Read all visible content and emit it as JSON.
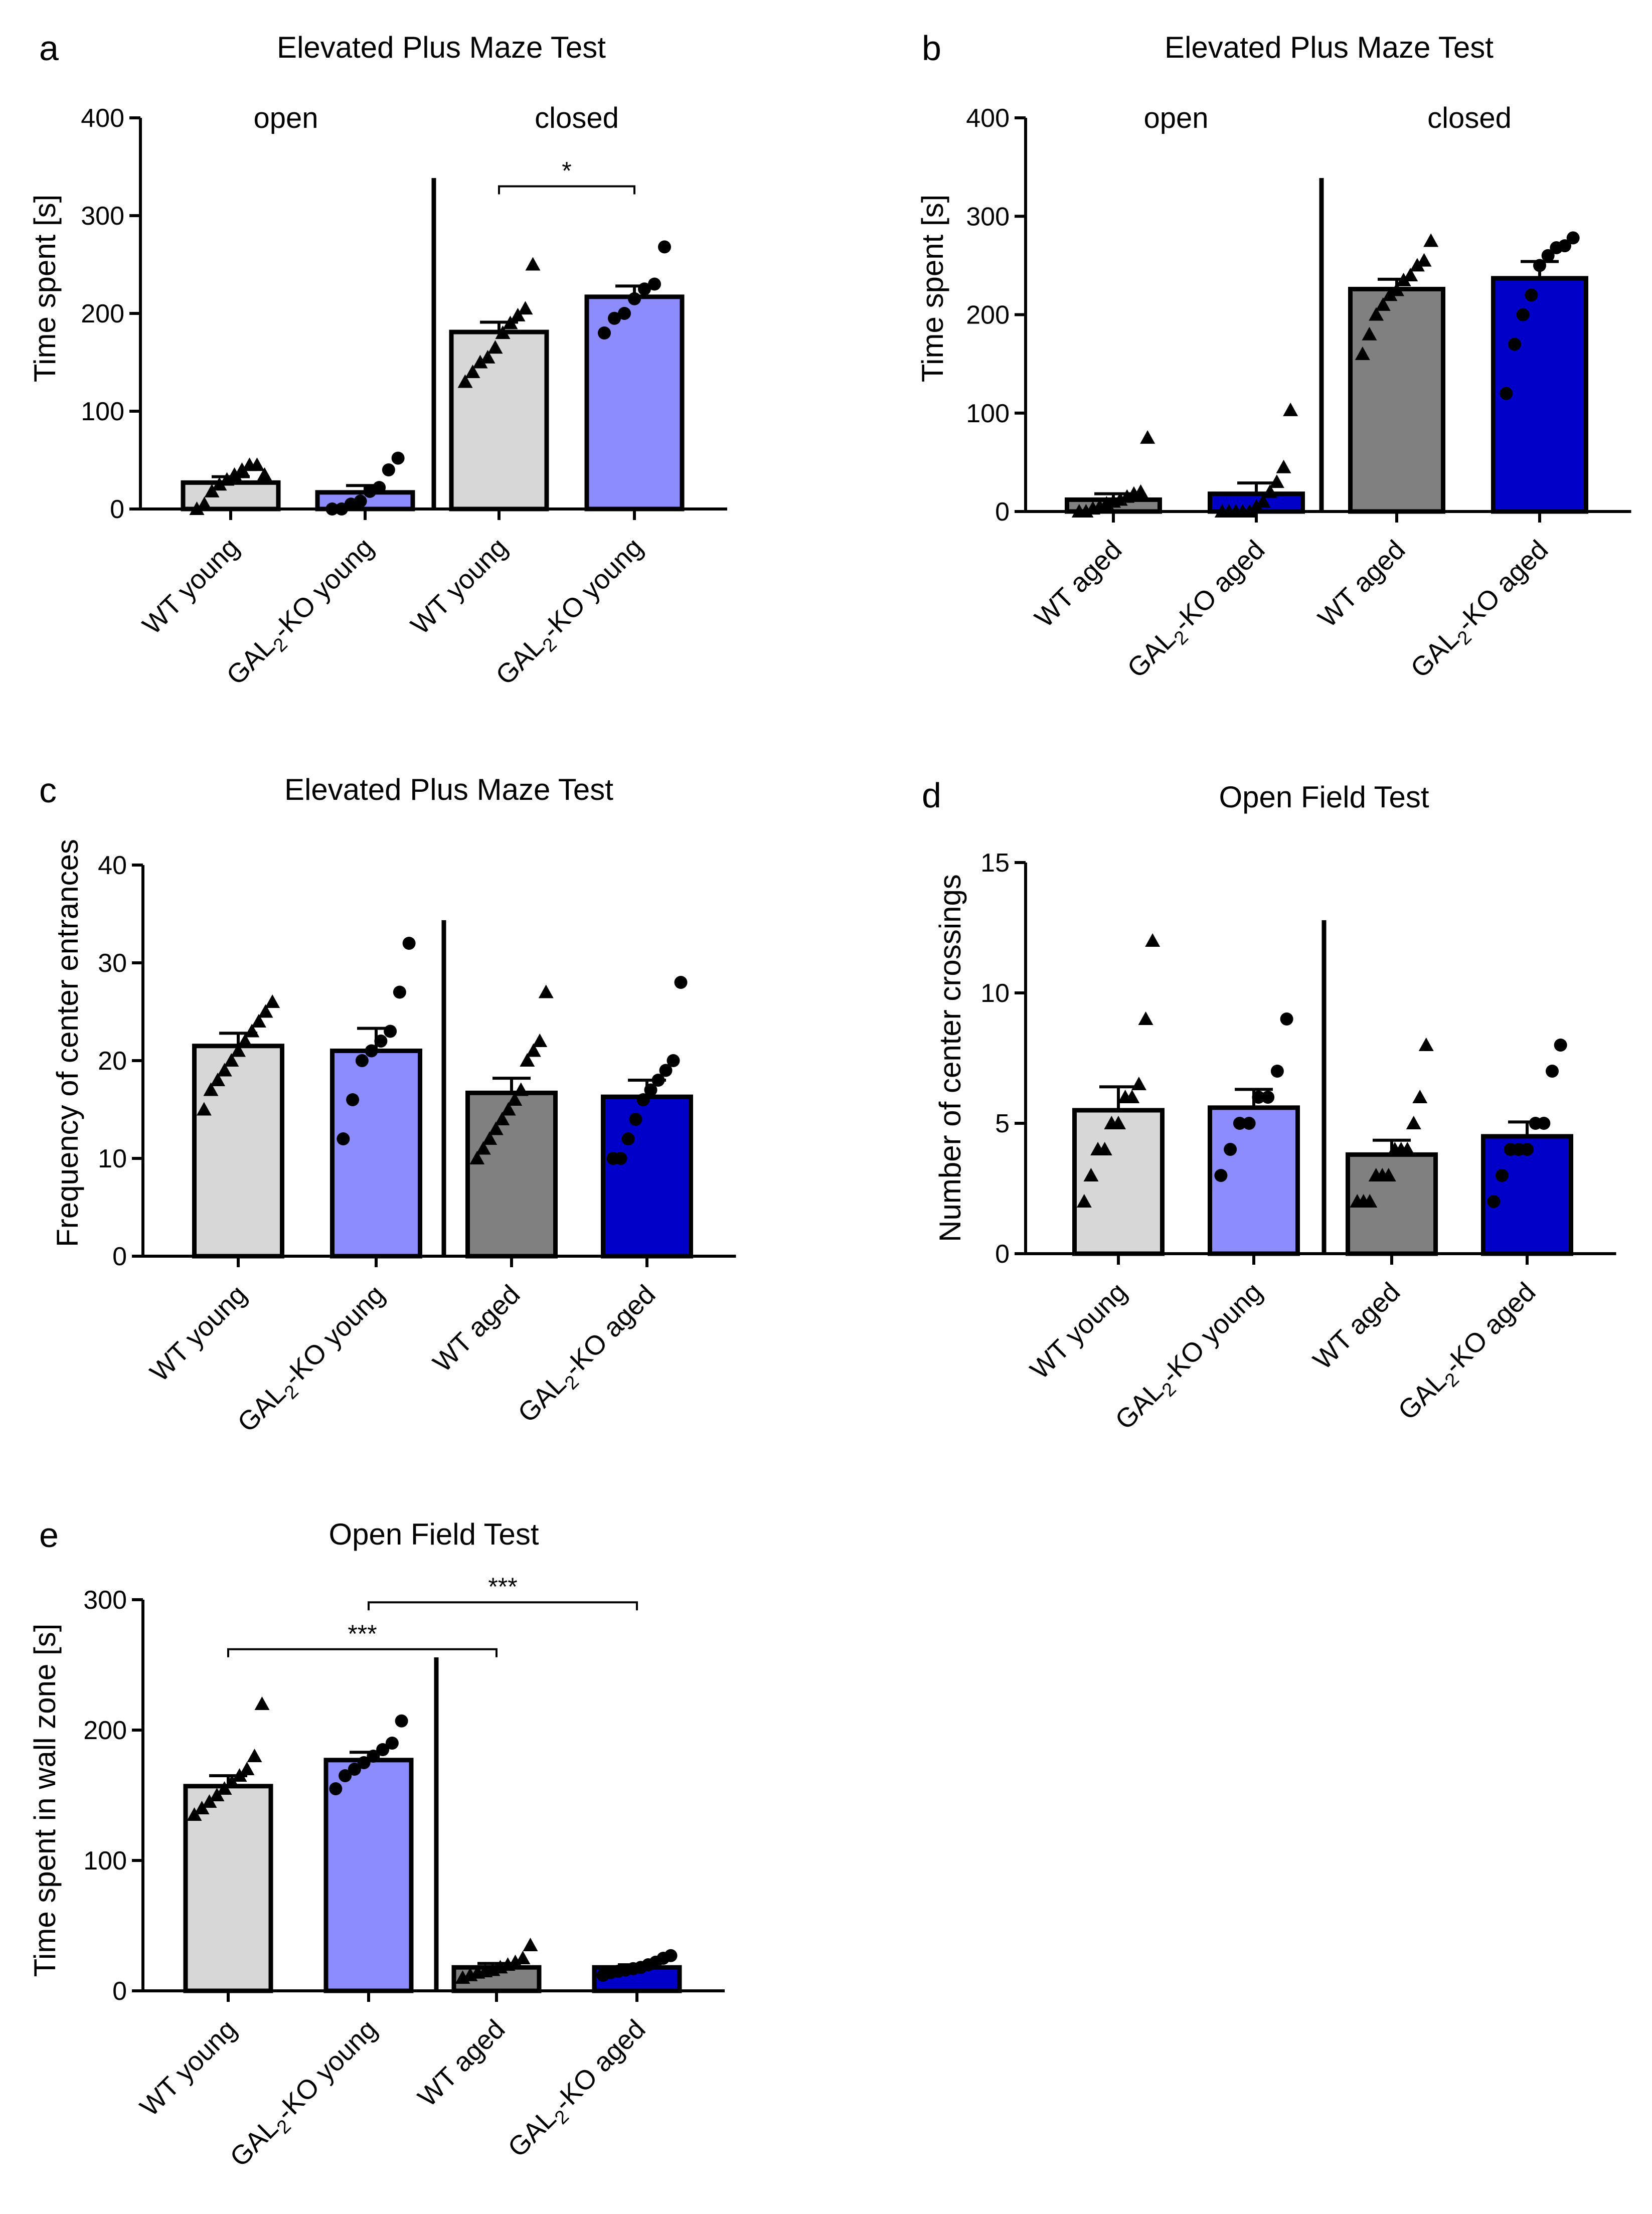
{
  "colors": {
    "wt_young": "#d7d7d7",
    "ko_young": "#8c8cff",
    "wt_aged": "#808080",
    "ko_aged": "#0000c8",
    "marker": "#000000"
  },
  "chart_data": [
    {
      "id": "a",
      "letter": "a",
      "type": "bar",
      "title": "Elevated Plus Maze Test",
      "ylabel": "Time spent [s]",
      "ylim": [
        0,
        400
      ],
      "yticks": [
        0,
        100,
        200,
        300,
        400
      ],
      "group_labels": [
        "open",
        "closed"
      ],
      "categories": [
        "WT young",
        "GAL2-KO young",
        "WT young",
        "GAL2-KO young"
      ],
      "category_labels": [
        {
          "pre": "WT young",
          "sub": "",
          "post": ""
        },
        {
          "pre": "GAL",
          "sub": "2",
          "post": "-KO young"
        },
        {
          "pre": "WT young",
          "sub": "",
          "post": ""
        },
        {
          "pre": "GAL",
          "sub": "2",
          "post": "-KO young"
        }
      ],
      "colors": [
        "#d7d7d7",
        "#8c8cff",
        "#d7d7d7",
        "#8c8cff"
      ],
      "markers": [
        "triangle",
        "circle",
        "triangle",
        "circle"
      ],
      "values": [
        27,
        17,
        181,
        217
      ],
      "sem": [
        6,
        7,
        10,
        11
      ],
      "points": [
        [
          0,
          5,
          18,
          25,
          30,
          35,
          40,
          45,
          45,
          35
        ],
        [
          0,
          0,
          5,
          8,
          18,
          22,
          40,
          52
        ],
        [
          130,
          140,
          150,
          155,
          165,
          180,
          190,
          198,
          205,
          250
        ],
        [
          180,
          195,
          200,
          215,
          225,
          230,
          268
        ]
      ],
      "significance": [
        {
          "from": 2,
          "to": 3,
          "label": "*",
          "y": 330
        }
      ]
    },
    {
      "id": "b",
      "letter": "b",
      "type": "bar",
      "title": "Elevated Plus Maze Test",
      "ylabel": "Time spent [s]",
      "ylim": [
        0,
        400
      ],
      "yticks": [
        0,
        100,
        200,
        300,
        400
      ],
      "group_labels": [
        "open",
        "closed"
      ],
      "categories": [
        "WT aged",
        "GAL2-KO aged",
        "WT aged",
        "GAL2-KO aged"
      ],
      "category_labels": [
        {
          "pre": "WT aged",
          "sub": "",
          "post": ""
        },
        {
          "pre": "GAL",
          "sub": "2",
          "post": "-KO aged"
        },
        {
          "pre": "WT aged",
          "sub": "",
          "post": ""
        },
        {
          "pre": "GAL",
          "sub": "2",
          "post": "-KO aged"
        }
      ],
      "colors": [
        "#808080",
        "#0000c8",
        "#808080",
        "#0000c8"
      ],
      "markers": [
        "triangle",
        "triangle",
        "triangle",
        "circle"
      ],
      "values": [
        12,
        18,
        226,
        237
      ],
      "sem": [
        6,
        11,
        10,
        17
      ],
      "points": [
        [
          0,
          0,
          3,
          5,
          8,
          10,
          12,
          15,
          18,
          20,
          75
        ],
        [
          0,
          0,
          0,
          0,
          0,
          5,
          10,
          20,
          30,
          45,
          103
        ],
        [
          160,
          180,
          200,
          210,
          220,
          225,
          235,
          240,
          250,
          255,
          275
        ],
        [
          120,
          170,
          200,
          220,
          250,
          260,
          268,
          270,
          278
        ]
      ],
      "significance": []
    },
    {
      "id": "c",
      "letter": "c",
      "type": "bar",
      "title": "Elevated Plus Maze Test",
      "ylabel": "Frequency of center entrances",
      "ylim": [
        0,
        40
      ],
      "yticks": [
        0,
        10,
        20,
        30,
        40
      ],
      "group_labels": [],
      "categories": [
        "WT young",
        "GAL2-KO young",
        "WT aged",
        "GAL2-KO aged"
      ],
      "category_labels": [
        {
          "pre": "WT young",
          "sub": "",
          "post": ""
        },
        {
          "pre": "GAL",
          "sub": "2",
          "post": "-KO young"
        },
        {
          "pre": "WT aged",
          "sub": "",
          "post": ""
        },
        {
          "pre": "GAL",
          "sub": "2",
          "post": "-KO aged"
        }
      ],
      "colors": [
        "#d7d7d7",
        "#8c8cff",
        "#808080",
        "#0000c8"
      ],
      "markers": [
        "triangle",
        "circle",
        "triangle",
        "circle"
      ],
      "values": [
        21.5,
        21,
        16.7,
        16.3
      ],
      "sem": [
        1.3,
        2.3,
        1.5,
        1.7
      ],
      "points": [
        [
          15,
          17,
          18,
          19,
          20,
          21,
          22,
          23,
          24,
          25,
          26
        ],
        [
          12,
          16,
          20,
          21,
          22,
          23,
          27,
          32
        ],
        [
          10,
          11,
          12,
          13,
          14,
          15,
          16,
          17,
          20,
          21,
          22,
          27
        ],
        [
          10,
          10,
          12,
          14,
          16,
          17,
          18,
          19,
          20,
          28
        ]
      ],
      "significance": []
    },
    {
      "id": "d",
      "letter": "d",
      "type": "bar",
      "title": "Open Field Test",
      "ylabel": "Number of center crossings",
      "ylim": [
        0,
        15
      ],
      "yticks": [
        0,
        5,
        10,
        15
      ],
      "group_labels": [],
      "categories": [
        "WT young",
        "GAL2-KO young",
        "WT aged",
        "GAL2-KO aged"
      ],
      "category_labels": [
        {
          "pre": "WT young",
          "sub": "",
          "post": ""
        },
        {
          "pre": "GAL",
          "sub": "2",
          "post": "-KO young"
        },
        {
          "pre": "WT aged",
          "sub": "",
          "post": ""
        },
        {
          "pre": "GAL",
          "sub": "2",
          "post": "-KO aged"
        }
      ],
      "colors": [
        "#d7d7d7",
        "#8c8cff",
        "#808080",
        "#0000c8"
      ],
      "markers": [
        "triangle",
        "circle",
        "triangle",
        "circle"
      ],
      "values": [
        5.5,
        5.6,
        3.8,
        4.5
      ],
      "sem": [
        0.9,
        0.7,
        0.55,
        0.55
      ],
      "points": [
        [
          2,
          3,
          4,
          4,
          5,
          5,
          6,
          6,
          6.5,
          9,
          12
        ],
        [
          3,
          4,
          5,
          5,
          6,
          6,
          7,
          9
        ],
        [
          2,
          2,
          2,
          3,
          3,
          3,
          4,
          4,
          4,
          5,
          6,
          8
        ],
        [
          2,
          3,
          4,
          4,
          4,
          5,
          5,
          7,
          8
        ]
      ],
      "significance": []
    },
    {
      "id": "e",
      "letter": "e",
      "type": "bar",
      "title": "Open Field Test",
      "ylabel": "Time spent in wall zone [s]",
      "ylim": [
        0,
        300
      ],
      "yticks": [
        0,
        100,
        200,
        300
      ],
      "group_labels": [],
      "categories": [
        "WT young",
        "GAL2-KO young",
        "WT aged",
        "GAL2-KO aged"
      ],
      "category_labels": [
        {
          "pre": "WT young",
          "sub": "",
          "post": ""
        },
        {
          "pre": "GAL",
          "sub": "2",
          "post": "-KO young"
        },
        {
          "pre": "WT aged",
          "sub": "",
          "post": ""
        },
        {
          "pre": "GAL",
          "sub": "2",
          "post": "-KO aged"
        }
      ],
      "colors": [
        "#d7d7d7",
        "#8c8cff",
        "#808080",
        "#0000c8"
      ],
      "markers": [
        "triangle",
        "circle",
        "triangle",
        "circle"
      ],
      "values": [
        157,
        177,
        18,
        18
      ],
      "sem": [
        8,
        6,
        3,
        2
      ],
      "points": [
        [
          135,
          140,
          145,
          150,
          155,
          160,
          165,
          170,
          180,
          220
        ],
        [
          155,
          165,
          170,
          175,
          180,
          185,
          190,
          207
        ],
        [
          10,
          12,
          14,
          15,
          16,
          18,
          20,
          22,
          25,
          35
        ],
        [
          12,
          14,
          15,
          16,
          17,
          18,
          20,
          22,
          25,
          27
        ]
      ],
      "significance": [
        {
          "from": 1,
          "to": 3,
          "label": "***",
          "y": 298
        },
        {
          "from": 0,
          "to": 2,
          "label": "***",
          "y": 262
        }
      ]
    }
  ]
}
